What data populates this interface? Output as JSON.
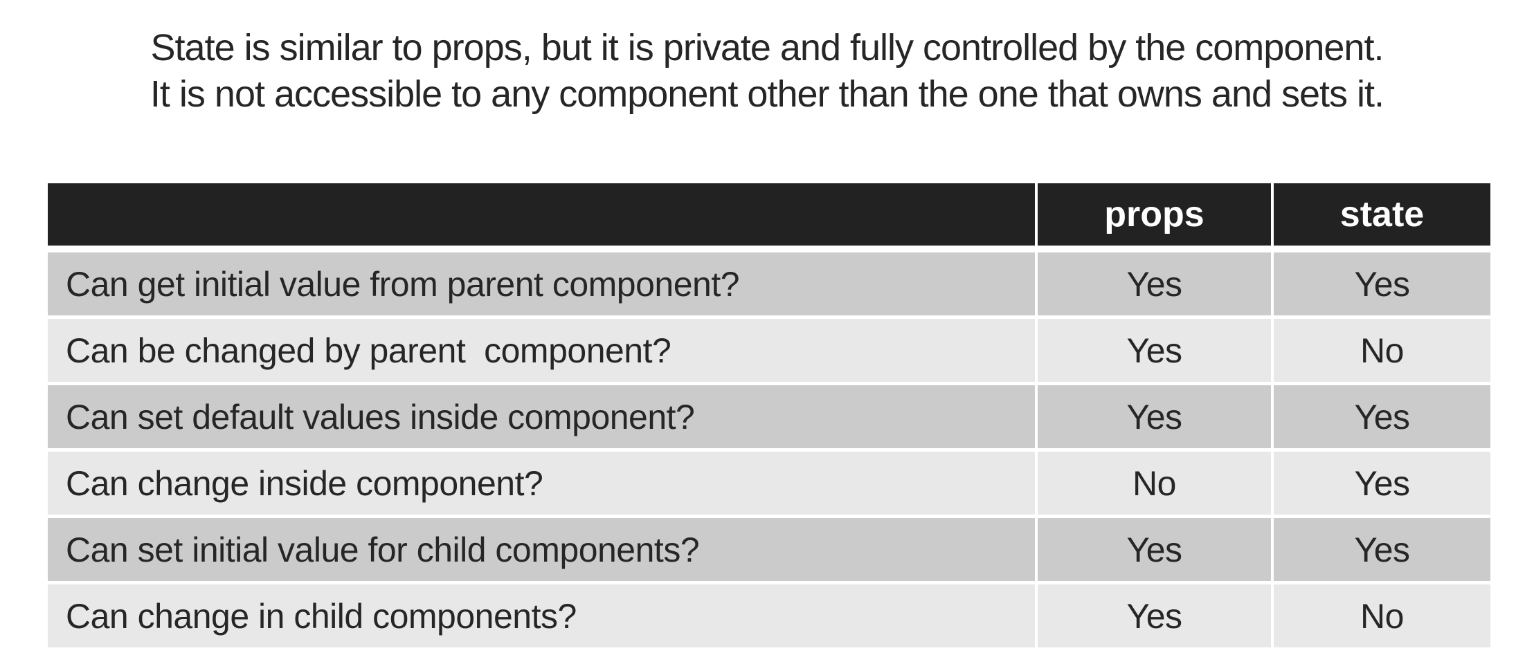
{
  "title": {
    "line1": "State is similar to props, but it is private and fully controlled by the component.",
    "line2": "It is not accessible to any component other than the one that owns and sets it."
  },
  "table": {
    "columns": [
      "",
      "props",
      "state"
    ],
    "rows": [
      {
        "question": "Can get initial value from parent component?",
        "props": "Yes",
        "state": "Yes"
      },
      {
        "question": "Can be changed by parent  component?",
        "props": "Yes",
        "state": "No"
      },
      {
        "question": "Can set default values inside component?",
        "props": "Yes",
        "state": "Yes"
      },
      {
        "question": "Can change inside component?",
        "props": "No",
        "state": "Yes"
      },
      {
        "question": "Can set initial value for child components?",
        "props": "Yes",
        "state": "Yes"
      },
      {
        "question": "Can change in child components?",
        "props": "Yes",
        "state": "No"
      }
    ]
  },
  "colors": {
    "header_bg": "#222222",
    "header_text": "#ffffff",
    "row_odd_bg": "#cbcbcb",
    "row_even_bg": "#e8e8e8",
    "body_text": "#262626"
  }
}
